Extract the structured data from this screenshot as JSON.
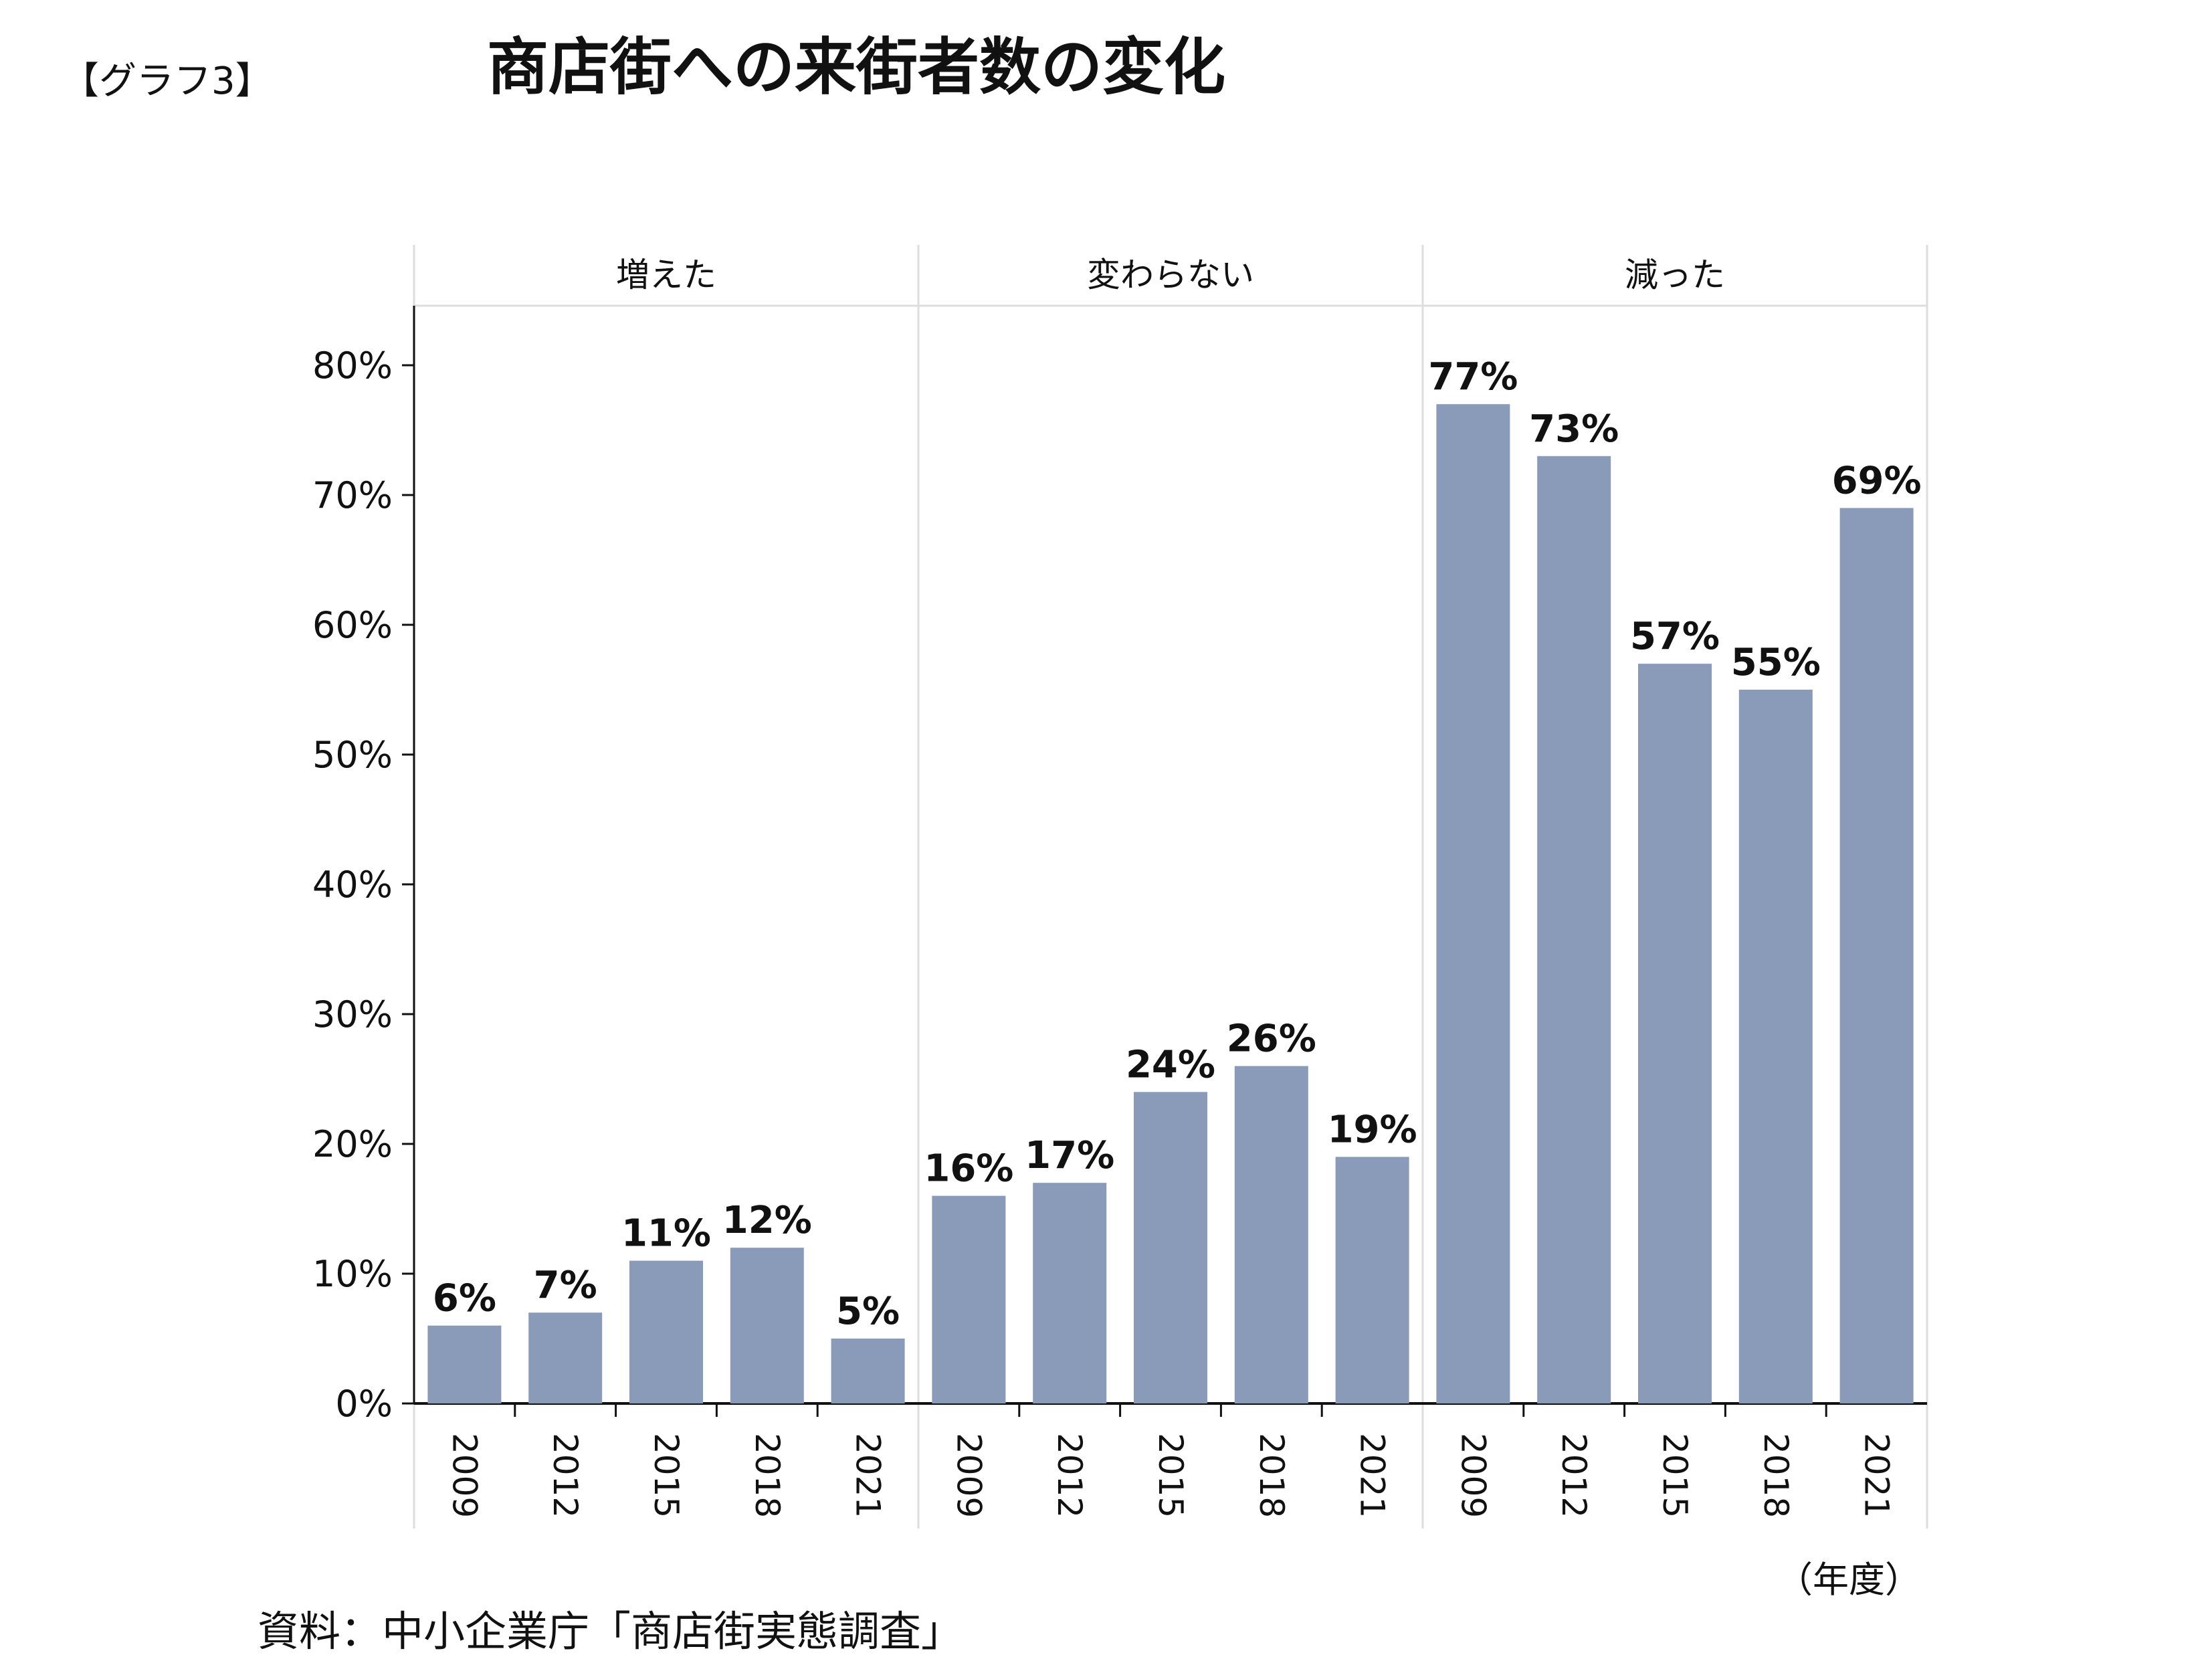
{
  "page": {
    "label": "【グラフ3】",
    "title": "商店街への来街者数の変化",
    "source": "資料：中小企業庁「商店街実態調査」",
    "unit_label": "（年度）"
  },
  "colors": {
    "bar": "#8a9bb9",
    "axis": "#111111",
    "divider": "#dddddd",
    "text": "#111111"
  },
  "chart_data": {
    "type": "bar",
    "title": "商店街への来街者数の変化",
    "xlabel": "（年度）",
    "ylabel": "",
    "ylim": [
      0,
      85
    ],
    "yticks": [
      0,
      10,
      20,
      30,
      40,
      50,
      60,
      70,
      80
    ],
    "ytick_labels": [
      "0%",
      "10%",
      "20%",
      "30%",
      "40%",
      "50%",
      "60%",
      "70%",
      "80%"
    ],
    "categories": [
      "2009",
      "2012",
      "2015",
      "2018",
      "2021"
    ],
    "grid": false,
    "legend": "none",
    "series": [
      {
        "name": "増えた",
        "values": [
          6,
          7,
          11,
          12,
          5
        ],
        "labels": [
          "6%",
          "7%",
          "11%",
          "12%",
          "5%"
        ]
      },
      {
        "name": "変わらない",
        "values": [
          16,
          17,
          24,
          26,
          19
        ],
        "labels": [
          "16%",
          "17%",
          "24%",
          "26%",
          "19%"
        ]
      },
      {
        "name": "減った",
        "values": [
          77,
          73,
          57,
          55,
          69
        ],
        "labels": [
          "77%",
          "73%",
          "57%",
          "55%",
          "69%"
        ]
      }
    ]
  }
}
